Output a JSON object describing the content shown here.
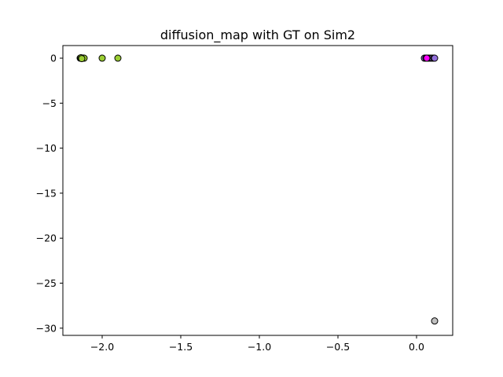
{
  "chart_data": {
    "type": "scatter",
    "title": "diffusion_map with GT on Sim2",
    "xlabel": "",
    "ylabel": "",
    "xlim": [
      -2.25,
      0.23
    ],
    "ylim": [
      -30.8,
      1.4
    ],
    "xticks": [
      -2.0,
      -1.5,
      -1.0,
      -0.5,
      0.0
    ],
    "xtick_labels": [
      "−2.0",
      "−1.5",
      "−1.0",
      "−0.5",
      "0.0"
    ],
    "yticks": [
      0,
      -5,
      -10,
      -15,
      -20,
      -25,
      -30
    ],
    "ytick_labels": [
      "0",
      "−5",
      "−10",
      "−15",
      "−20",
      "−25",
      "−30"
    ],
    "grid": false,
    "legend": "none",
    "series": [
      {
        "color": "#9acd32",
        "points": [
          {
            "x": -2.14,
            "y": 0.0
          },
          {
            "x": -2.135,
            "y": 0.0
          },
          {
            "x": -2.13,
            "y": 0.0
          },
          {
            "x": -2.125,
            "y": 0.0
          },
          {
            "x": -2.12,
            "y": 0.0
          },
          {
            "x": -2.115,
            "y": 0.0
          },
          {
            "x": -2.135,
            "y": 0.05
          },
          {
            "x": -2.13,
            "y": -0.05
          },
          {
            "x": -2.0,
            "y": 0.0
          },
          {
            "x": -1.9,
            "y": 0.0
          }
        ]
      },
      {
        "color": "#9370db",
        "points": [
          {
            "x": 0.05,
            "y": 0.0
          },
          {
            "x": 0.06,
            "y": 0.0
          },
          {
            "x": 0.07,
            "y": 0.0
          },
          {
            "x": 0.08,
            "y": 0.0
          },
          {
            "x": 0.09,
            "y": 0.0
          },
          {
            "x": 0.1,
            "y": 0.0
          },
          {
            "x": 0.11,
            "y": 0.0
          },
          {
            "x": 0.115,
            "y": 0.0
          }
        ]
      },
      {
        "color": "#c0c0c0",
        "points": [
          {
            "x": 0.115,
            "y": -29.2
          }
        ]
      },
      {
        "color": "#ff00ff",
        "points": [
          {
            "x": 0.065,
            "y": 0.0
          }
        ]
      }
    ]
  }
}
